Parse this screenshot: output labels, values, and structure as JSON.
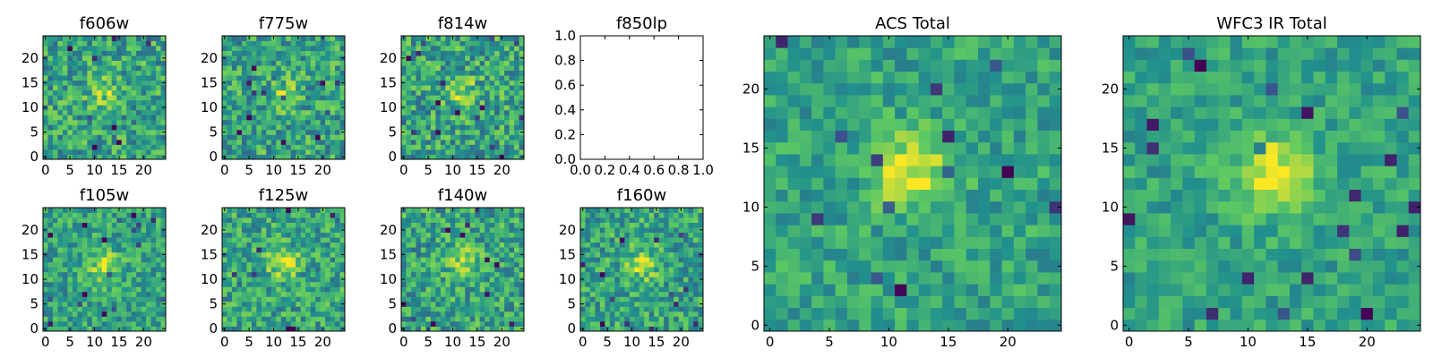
{
  "figure": {
    "background": "#ffffff",
    "colormap": "viridis",
    "colormap_stops": [
      "#440154",
      "#3b528b",
      "#21908d",
      "#5dc963",
      "#fde725"
    ]
  },
  "chart_data": [
    {
      "id": "f606w",
      "type": "heatmap",
      "title": "f606w",
      "grid": false,
      "xlim": [
        -0.5,
        24.5
      ],
      "ylim": [
        -0.5,
        24.5
      ],
      "origin": "lower",
      "xticks": [
        "0",
        "5",
        "10",
        "15",
        "20"
      ],
      "yticks": [
        "0",
        "5",
        "10",
        "15",
        "20"
      ],
      "size": [
        25,
        25
      ],
      "source_peak": [
        12,
        13
      ],
      "source_amplitude": 0.22,
      "noise": 0.24,
      "seed": 11,
      "value_range": [
        0,
        1
      ]
    },
    {
      "id": "f775w",
      "type": "heatmap",
      "title": "f775w",
      "grid": false,
      "xlim": [
        -0.5,
        24.5
      ],
      "ylim": [
        -0.5,
        24.5
      ],
      "origin": "lower",
      "xticks": [
        "0",
        "5",
        "10",
        "15",
        "20"
      ],
      "yticks": [
        "0",
        "5",
        "10",
        "15",
        "20"
      ],
      "size": [
        25,
        25
      ],
      "source_peak": [
        12,
        13
      ],
      "source_amplitude": 0.2,
      "noise": 0.24,
      "seed": 23,
      "value_range": [
        0,
        1
      ]
    },
    {
      "id": "f814w",
      "type": "heatmap",
      "title": "f814w",
      "grid": false,
      "xlim": [
        -0.5,
        24.5
      ],
      "ylim": [
        -0.5,
        24.5
      ],
      "origin": "lower",
      "xticks": [
        "0",
        "5",
        "10",
        "15",
        "20"
      ],
      "yticks": [
        "0",
        "5",
        "10",
        "15",
        "20"
      ],
      "size": [
        25,
        25
      ],
      "source_peak": [
        12,
        13
      ],
      "source_amplitude": 0.25,
      "noise": 0.25,
      "seed": 37,
      "value_range": [
        0,
        1
      ]
    },
    {
      "id": "f850lp",
      "type": "empty",
      "title": "f850lp",
      "grid": false,
      "xlim": [
        0,
        1
      ],
      "ylim": [
        0,
        1
      ],
      "xticks": [
        "0.0",
        "0.2",
        "0.4",
        "0.6",
        "0.8",
        "1.0"
      ],
      "yticks": [
        "0.0",
        "0.2",
        "0.4",
        "0.6",
        "0.8",
        "1.0"
      ]
    },
    {
      "id": "acs_total",
      "type": "heatmap",
      "title": "ACS Total",
      "grid": false,
      "xlim": [
        -0.5,
        24.5
      ],
      "ylim": [
        -0.5,
        24.5
      ],
      "origin": "lower",
      "xticks": [
        "0",
        "5",
        "10",
        "15",
        "20"
      ],
      "yticks": [
        "0",
        "5",
        "10",
        "15",
        "20"
      ],
      "size": [
        25,
        25
      ],
      "source_peak": [
        12,
        13
      ],
      "source_amplitude": 0.38,
      "noise": 0.16,
      "seed": 53,
      "value_range": [
        0,
        1
      ]
    },
    {
      "id": "wfc3_ir_total",
      "type": "heatmap",
      "title": "WFC3 IR Total",
      "grid": false,
      "xlim": [
        -0.5,
        24.5
      ],
      "ylim": [
        -0.5,
        24.5
      ],
      "origin": "lower",
      "xticks": [
        "0",
        "5",
        "10",
        "15",
        "20"
      ],
      "yticks": [
        "0",
        "5",
        "10",
        "15",
        "20"
      ],
      "size": [
        25,
        25
      ],
      "source_peak": [
        12,
        13
      ],
      "source_amplitude": 0.4,
      "noise": 0.14,
      "seed": 71,
      "value_range": [
        0,
        1
      ]
    },
    {
      "id": "f105w",
      "type": "heatmap",
      "title": "f105w",
      "grid": false,
      "xlim": [
        -0.5,
        24.5
      ],
      "ylim": [
        -0.5,
        24.5
      ],
      "origin": "lower",
      "xticks": [
        "0",
        "5",
        "10",
        "15",
        "20"
      ],
      "yticks": [
        "0",
        "5",
        "10",
        "15",
        "20"
      ],
      "size": [
        25,
        25
      ],
      "source_peak": [
        12,
        13
      ],
      "source_amplitude": 0.3,
      "noise": 0.2,
      "seed": 89,
      "value_range": [
        0,
        1
      ]
    },
    {
      "id": "f125w",
      "type": "heatmap",
      "title": "f125w",
      "grid": false,
      "xlim": [
        -0.5,
        24.5
      ],
      "ylim": [
        -0.5,
        24.5
      ],
      "origin": "lower",
      "xticks": [
        "0",
        "5",
        "10",
        "15",
        "20"
      ],
      "yticks": [
        "0",
        "5",
        "10",
        "15",
        "20"
      ],
      "size": [
        25,
        25
      ],
      "source_peak": [
        12,
        13
      ],
      "source_amplitude": 0.32,
      "noise": 0.22,
      "seed": 97,
      "value_range": [
        0,
        1
      ]
    },
    {
      "id": "f140w",
      "type": "heatmap",
      "title": "f140w",
      "grid": false,
      "xlim": [
        -0.5,
        24.5
      ],
      "ylim": [
        -0.5,
        24.5
      ],
      "origin": "lower",
      "xticks": [
        "0",
        "5",
        "10",
        "15",
        "20"
      ],
      "yticks": [
        "0",
        "5",
        "10",
        "15",
        "20"
      ],
      "size": [
        25,
        25
      ],
      "source_peak": [
        12,
        13
      ],
      "source_amplitude": 0.3,
      "noise": 0.23,
      "seed": 113,
      "value_range": [
        0,
        1
      ]
    },
    {
      "id": "f160w",
      "type": "heatmap",
      "title": "f160w",
      "grid": false,
      "xlim": [
        -0.5,
        24.5
      ],
      "ylim": [
        -0.5,
        24.5
      ],
      "origin": "lower",
      "xticks": [
        "0",
        "5",
        "10",
        "15",
        "20"
      ],
      "yticks": [
        "0",
        "5",
        "10",
        "15",
        "20"
      ],
      "size": [
        25,
        25
      ],
      "source_peak": [
        12,
        13
      ],
      "source_amplitude": 0.28,
      "noise": 0.22,
      "seed": 131,
      "value_range": [
        0,
        1
      ]
    }
  ]
}
